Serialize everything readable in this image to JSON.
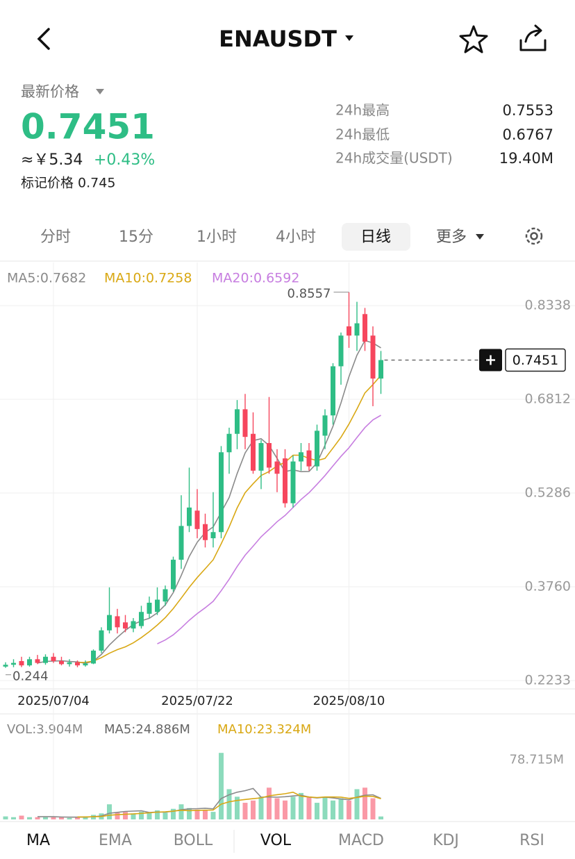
{
  "header": {
    "title": "ENAUSDT"
  },
  "price": {
    "label": "最新价格",
    "last": "0.7451",
    "cny": "≈￥5.34",
    "change": "+0.43%",
    "mark": "标记价格 0.745"
  },
  "stats": [
    {
      "label": "24h最高",
      "value": "0.7553"
    },
    {
      "label": "24h最低",
      "value": "0.6767"
    },
    {
      "label": "24h成交量(USDT)",
      "value": "19.40M"
    }
  ],
  "tabs": [
    "分时",
    "15分",
    "1小时",
    "4小时",
    "日线",
    "更多"
  ],
  "chart_data": {
    "type": "candlestick",
    "ma_legend": [
      "MA5:0.7682",
      "MA10:0.7258",
      "MA20:0.6592"
    ],
    "categories": [
      null,
      null,
      null,
      null,
      null,
      null,
      "2025/07/04",
      null,
      null,
      null,
      null,
      null,
      null,
      null,
      null,
      null,
      null,
      null,
      null,
      null,
      null,
      null,
      null,
      null,
      "2025/07/22",
      null,
      null,
      null,
      null,
      null,
      null,
      null,
      null,
      null,
      null,
      null,
      null,
      null,
      null,
      null,
      null,
      null,
      null,
      "2025/08/10",
      null,
      null,
      null,
      null
    ],
    "open": [
      0.246,
      0.249,
      0.255,
      0.248,
      0.258,
      0.252,
      0.262,
      0.255,
      0.25,
      0.253,
      0.248,
      0.251,
      0.272,
      0.305,
      0.328,
      0.318,
      0.308,
      0.312,
      0.332,
      0.335,
      0.352,
      0.372,
      0.42,
      0.475,
      0.5,
      0.478,
      0.455,
      0.465,
      0.595,
      0.625,
      0.665,
      0.625,
      0.565,
      0.61,
      0.58,
      0.585,
      0.512,
      0.58,
      0.598,
      0.572,
      0.622,
      0.655,
      0.735,
      0.8,
      0.785,
      0.82,
      0.785,
      0.715
    ],
    "high": [
      0.253,
      0.258,
      0.262,
      0.262,
      0.265,
      0.266,
      0.268,
      0.262,
      0.258,
      0.256,
      0.256,
      0.274,
      0.31,
      0.375,
      0.34,
      0.33,
      0.325,
      0.345,
      0.36,
      0.375,
      0.378,
      0.425,
      0.525,
      0.57,
      0.535,
      0.495,
      0.53,
      0.605,
      0.635,
      0.68,
      0.69,
      0.66,
      0.615,
      0.685,
      0.6,
      0.6,
      0.59,
      0.61,
      0.61,
      0.64,
      0.665,
      0.74,
      0.79,
      0.8557,
      0.84,
      0.83,
      0.8,
      0.76
    ],
    "low": [
      0.244,
      0.245,
      0.2452,
      0.246,
      0.25,
      0.249,
      0.252,
      0.248,
      0.246,
      0.245,
      0.246,
      0.25,
      0.268,
      0.3,
      0.3,
      0.302,
      0.302,
      0.308,
      0.325,
      0.33,
      0.345,
      0.368,
      0.405,
      0.465,
      0.455,
      0.44,
      0.44,
      0.455,
      0.56,
      0.6,
      0.6,
      0.56,
      0.535,
      0.56,
      0.53,
      0.505,
      0.505,
      0.565,
      0.565,
      0.565,
      0.6,
      0.64,
      0.705,
      0.765,
      0.76,
      0.76,
      0.67,
      0.69
    ],
    "close": [
      0.249,
      0.252,
      0.248,
      0.258,
      0.252,
      0.262,
      0.255,
      0.25,
      0.253,
      0.248,
      0.251,
      0.272,
      0.305,
      0.33,
      0.31,
      0.308,
      0.32,
      0.335,
      0.35,
      0.355,
      0.372,
      0.42,
      0.475,
      0.505,
      0.47,
      0.452,
      0.465,
      0.595,
      0.625,
      0.665,
      0.62,
      0.565,
      0.61,
      0.57,
      0.56,
      0.512,
      0.58,
      0.595,
      0.572,
      0.63,
      0.655,
      0.735,
      0.785,
      0.785,
      0.805,
      0.775,
      0.715,
      0.7451
    ],
    "ylim": [
      0.212,
      0.904
    ],
    "yticks": [
      0.8338,
      0.6812,
      0.5286,
      {
        "value": 0.376,
        "label": "0.3760"
      },
      0.2233
    ],
    "up_color": "#2ebd85",
    "down_color": "#f6465d",
    "ma_colors": [
      "#8a8a8a",
      "#d9a814",
      "#c77ee0"
    ],
    "grid": true,
    "volume": {
      "legend": [
        "VOL:3.904M",
        "MA5:24.886M",
        "MA10:23.324M"
      ],
      "values": [
        4,
        3,
        5,
        3,
        3,
        4,
        3,
        3,
        2,
        3,
        4,
        6,
        8,
        20,
        9,
        10,
        8,
        10,
        9,
        12,
        9,
        14,
        20,
        15,
        13,
        12,
        10,
        88,
        40,
        30,
        22,
        25,
        30,
        42,
        28,
        25,
        30,
        35,
        30,
        22,
        30,
        25,
        28,
        25,
        40,
        42,
        28,
        3.904
      ],
      "ylim": [
        0,
        90
      ],
      "yticks": [
        {
          "value": 78.715,
          "label": "78.715M"
        }
      ]
    }
  },
  "bottom_tabs": [
    "MA",
    "EMA",
    "BOLL",
    "VOL",
    "MACD",
    "KDJ",
    "RSI"
  ]
}
